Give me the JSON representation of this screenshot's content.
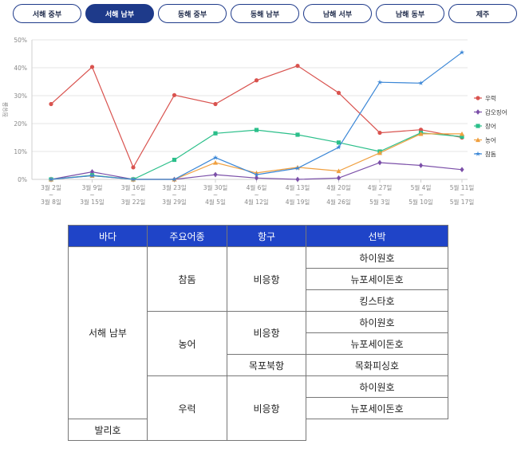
{
  "tabs": [
    {
      "label": "서해 중부",
      "active": false
    },
    {
      "label": "서해 남부",
      "active": true
    },
    {
      "label": "동해 중부",
      "active": false
    },
    {
      "label": "동해 남부",
      "active": false
    },
    {
      "label": "남해 서부",
      "active": false
    },
    {
      "label": "남해 동부",
      "active": false
    },
    {
      "label": "제주",
      "active": false
    }
  ],
  "chart_data": {
    "type": "line",
    "ylabel": "점유율",
    "ylim": [
      0,
      50
    ],
    "yticks": [
      "0%",
      "10%",
      "20%",
      "30%",
      "40%",
      "50%"
    ],
    "categories": [
      {
        "line1": "3월 2일",
        "line2": "3월 8일"
      },
      {
        "line1": "3월 9일",
        "line2": "3월 15일"
      },
      {
        "line1": "3월 16일",
        "line2": "3월 22일"
      },
      {
        "line1": "3월 23일",
        "line2": "3월 29일"
      },
      {
        "line1": "3월 30일",
        "line2": "4월 5일"
      },
      {
        "line1": "4월 6일",
        "line2": "4월 12일"
      },
      {
        "line1": "4월 13일",
        "line2": "4월 19일"
      },
      {
        "line1": "4월 20일",
        "line2": "4월 26일"
      },
      {
        "line1": "4월 27일",
        "line2": "5월 3일"
      },
      {
        "line1": "5월 4일",
        "line2": "5월 10일"
      },
      {
        "line1": "5월 11일",
        "line2": "5월 17일"
      }
    ],
    "range_sep": "~",
    "legend_position": "right",
    "grid": true,
    "series": [
      {
        "name": "우럭",
        "color": "#d9534f",
        "marker": "circle",
        "values": [
          27,
          40.3,
          4.3,
          30.2,
          27,
          35.5,
          40.7,
          31,
          16.7,
          17.8,
          15
        ]
      },
      {
        "name": "갑오징어",
        "color": "#7b4fa8",
        "marker": "diamond",
        "values": [
          0,
          2.7,
          0,
          0,
          1.7,
          0.5,
          0,
          0.5,
          6,
          5,
          3.5
        ]
      },
      {
        "name": "장어",
        "color": "#2bbf8a",
        "marker": "square",
        "values": [
          0,
          1.5,
          0,
          7,
          16.5,
          17.7,
          16,
          13.2,
          10,
          16.7,
          15.3
        ]
      },
      {
        "name": "농어",
        "color": "#f0a040",
        "marker": "triangle",
        "values": [
          0,
          1.3,
          0,
          0,
          6,
          2.3,
          4.3,
          3,
          9.5,
          16.3,
          16.3
        ]
      },
      {
        "name": "참돔",
        "color": "#3a86d6",
        "marker": "star",
        "values": [
          0,
          1.3,
          0,
          0,
          7.8,
          1.7,
          4,
          11.5,
          34.8,
          34.5,
          45.5
        ]
      }
    ]
  },
  "table": {
    "headers": [
      "바다",
      "주요어종",
      "항구",
      "선박"
    ],
    "sea": "서해 남부",
    "groups": [
      {
        "species": "참돔",
        "ports": [
          {
            "name": "비응항",
            "ships": [
              "하이원호",
              "뉴포세이돈호",
              "킹스타호"
            ]
          }
        ]
      },
      {
        "species": "농어",
        "ports": [
          {
            "name": "비응항",
            "ships": [
              "하이원호",
              "뉴포세이돈호"
            ]
          },
          {
            "name": "목포북항",
            "ships": [
              "목화피싱호"
            ]
          }
        ]
      },
      {
        "species": "우럭",
        "ports": [
          {
            "name": "비응항",
            "ships": [
              "하이원호",
              "뉴포세이돈호",
              "발리호"
            ]
          }
        ]
      }
    ]
  }
}
